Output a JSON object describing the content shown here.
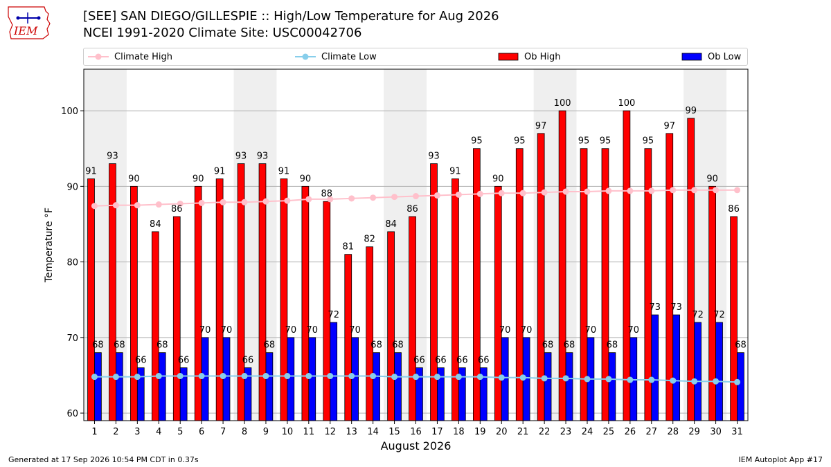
{
  "header": {
    "title_line1": "[SEE] SAN DIEGO/GILLESPIE :: High/Low Temperature for Aug 2026",
    "title_line2": "NCEI 1991-2020 Climate Site: USC00042706"
  },
  "logo": {
    "text": "IEM",
    "color": "#cc0000",
    "accent": "#0000aa"
  },
  "footer": {
    "generated": "Generated at 17 Sep 2026 10:54 PM CDT in 0.37s",
    "app": "IEM Autoplot App #17"
  },
  "chart_data": {
    "type": "bar",
    "xlabel": "August 2026",
    "ylabel": "Temperature °F",
    "ylim": [
      59,
      105.5
    ],
    "yticks": [
      60,
      70,
      80,
      90,
      100
    ],
    "grid": "horizontal",
    "legend_position": "top",
    "categories": [
      "1",
      "2",
      "3",
      "4",
      "5",
      "6",
      "7",
      "8",
      "9",
      "10",
      "11",
      "12",
      "13",
      "14",
      "15",
      "16",
      "17",
      "18",
      "19",
      "20",
      "21",
      "22",
      "23",
      "24",
      "25",
      "26",
      "27",
      "28",
      "29",
      "30",
      "31"
    ],
    "weekend_shading": [
      [
        1,
        2
      ],
      [
        8,
        9
      ],
      [
        15,
        16
      ],
      [
        22,
        23
      ],
      [
        29,
        30
      ]
    ],
    "series": [
      {
        "name": "Ob High",
        "kind": "bar",
        "color": "#ff0000",
        "values": [
          91,
          93,
          90,
          84,
          86,
          90,
          91,
          93,
          93,
          91,
          90,
          88,
          81,
          82,
          84,
          86,
          93,
          91,
          95,
          90,
          95,
          97,
          100,
          95,
          95,
          100,
          95,
          97,
          99,
          90,
          86
        ]
      },
      {
        "name": "Ob Low",
        "kind": "bar",
        "color": "#0000ff",
        "values": [
          68,
          68,
          66,
          68,
          66,
          70,
          70,
          66,
          68,
          70,
          70,
          72,
          70,
          68,
          68,
          66,
          66,
          66,
          66,
          70,
          70,
          68,
          68,
          70,
          68,
          70,
          73,
          73,
          72,
          72,
          68
        ]
      },
      {
        "name": "Climate High",
        "kind": "line",
        "color": "#ffc0cb",
        "values": [
          87.4,
          87.5,
          87.5,
          87.6,
          87.7,
          87.8,
          87.9,
          87.9,
          88.0,
          88.1,
          88.3,
          88.3,
          88.4,
          88.5,
          88.6,
          88.7,
          88.8,
          88.9,
          89.0,
          89.1,
          89.1,
          89.2,
          89.3,
          89.3,
          89.4,
          89.4,
          89.4,
          89.5,
          89.5,
          89.5,
          89.5
        ]
      },
      {
        "name": "Climate Low",
        "kind": "line",
        "color": "#87ceeb",
        "values": [
          64.8,
          64.8,
          64.8,
          64.9,
          64.9,
          64.9,
          64.9,
          64.9,
          64.9,
          64.9,
          64.9,
          64.9,
          64.9,
          64.9,
          64.8,
          64.8,
          64.8,
          64.8,
          64.8,
          64.7,
          64.7,
          64.6,
          64.6,
          64.5,
          64.5,
          64.4,
          64.4,
          64.3,
          64.2,
          64.2,
          64.1
        ]
      }
    ]
  }
}
